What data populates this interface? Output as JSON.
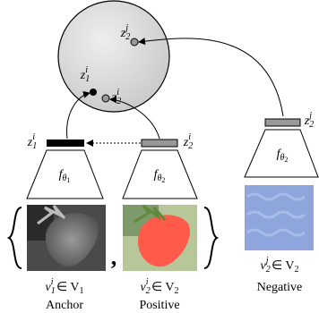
{
  "sphere_points": [
    {
      "base": "z",
      "sub": "1",
      "sup": "i"
    },
    {
      "base": "z",
      "sub": "2",
      "sup": "i"
    },
    {
      "base": "z",
      "sub": "2",
      "sup": "j"
    }
  ],
  "branches": [
    {
      "embedding": {
        "base": "z",
        "sub": "1",
        "sup": "i"
      },
      "encoder": {
        "base": "f",
        "sub": "θ",
        "subsub": "1"
      },
      "view": {
        "base": "v",
        "sub": "1",
        "sup": "i",
        "rest": " ∈ V",
        "rest_sub": "1"
      },
      "caption": "Anchor"
    },
    {
      "embedding": {
        "base": "z",
        "sub": "2",
        "sup": "i"
      },
      "encoder": {
        "base": "f",
        "sub": "θ",
        "subsub": "2"
      },
      "view": {
        "base": "v",
        "sub": "2",
        "sup": "i",
        "rest": " ∈ V",
        "rest_sub": "2"
      },
      "caption": "Positive"
    },
    {
      "embedding": {
        "base": "z",
        "sub": "2",
        "sup": "j"
      },
      "encoder": {
        "base": "f",
        "sub": "θ",
        "subsub": "2"
      },
      "view": {
        "base": "v",
        "sub": "2",
        "sup": "j",
        "rest": " ∈ V",
        "rest_sub": "2"
      },
      "caption": "Negative"
    }
  ],
  "comma": ","
}
